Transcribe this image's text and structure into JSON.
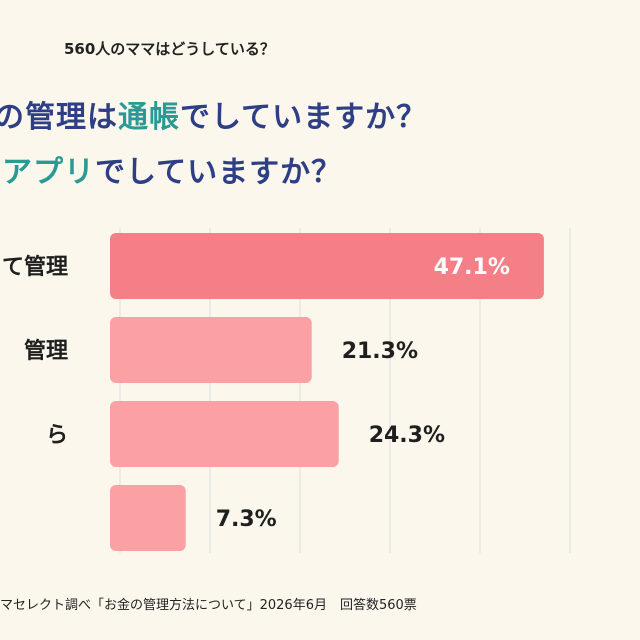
{
  "header": {
    "subtitle": "560人のママはどうしている？",
    "title_line1": {
      "prefix": "の管理は",
      "accent": "通帳",
      "suffix": "でしていますか？"
    },
    "title_line2": {
      "prefix": "",
      "accent": "アプリ",
      "suffix": "でしていますか？"
    }
  },
  "footer": {
    "source": "マセレクト調べ「お金の管理方法について」2026年6月　回答数560票"
  },
  "colors": {
    "background": "#fbf7ec",
    "bar_highlight": "#f47f86",
    "bar_normal": "#fba1a3",
    "title": "#2e3f86",
    "title_accent": "#2a9a94"
  },
  "chart_data": {
    "type": "bar",
    "orientation": "horizontal",
    "categories": [
      "て管理",
      "管理",
      "ら",
      ""
    ],
    "values": [
      47.1,
      21.3,
      24.3,
      7.3
    ],
    "value_labels": [
      "47.1%",
      "21.3%",
      "24.3%",
      "7.3%"
    ],
    "highlight_index": 0,
    "xlim": [
      0,
      60
    ],
    "grid": true,
    "title": "",
    "xlabel": "",
    "ylabel": ""
  }
}
